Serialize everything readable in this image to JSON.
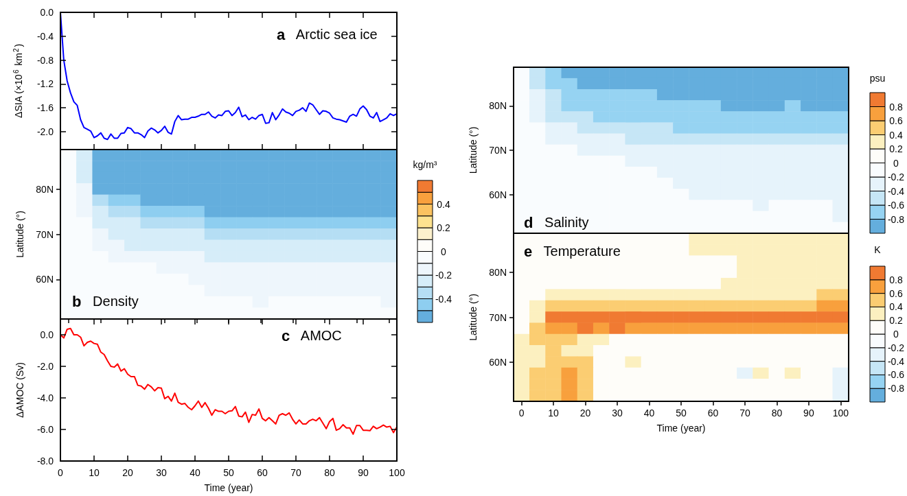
{
  "chart_data": [
    {
      "type": "line",
      "title": "Arctic sea ice",
      "annotations": [
        "a"
      ],
      "ylabel": "ΔSIA (×10$^{6}$ km$^{2}$)",
      "marker": "none",
      "tick_labels": "y",
      "x": [
        0,
        1,
        2,
        3,
        4,
        5,
        6,
        7,
        8,
        9,
        10,
        11,
        12,
        13,
        14,
        15,
        16,
        17,
        18,
        19,
        20,
        21,
        22,
        23,
        24,
        25,
        26,
        27,
        28,
        29,
        30,
        31,
        32,
        33,
        34,
        35,
        36,
        37,
        38,
        39,
        40,
        41,
        42,
        43,
        44,
        45,
        46,
        47,
        48,
        49,
        50,
        51,
        52,
        53,
        54,
        55,
        56,
        57,
        58,
        59,
        60,
        61,
        62,
        63,
        64,
        65,
        66,
        67,
        68,
        69,
        70,
        71,
        72,
        73,
        74,
        75,
        76,
        77,
        78,
        79,
        80,
        81,
        82,
        83,
        84,
        85,
        86,
        87,
        88,
        89,
        90,
        91,
        92,
        93,
        94,
        95,
        96,
        97,
        98,
        99,
        100
      ],
      "xlim": [
        0,
        100
      ],
      "xticks": [
        0,
        10,
        20,
        30,
        40,
        50,
        60,
        70,
        80,
        90,
        100
      ],
      "ylim": [
        -2.3,
        0
      ],
      "yticks": [
        {
          "value": 0,
          "label": "0.0"
        },
        -0.4,
        -0.8,
        -1.2,
        -1.6,
        {
          "value": -2,
          "label": "-2.0"
        }
      ],
      "series": [
        {
          "color": "#0000ff",
          "values": [
            0,
            -0.8,
            -1.15,
            -1.35,
            -1.5,
            -1.56,
            -1.8,
            -1.93,
            -1.96,
            -1.99,
            -2.1,
            -2.07,
            -2.02,
            -2.11,
            -2.13,
            -2.04,
            -2.11,
            -2.11,
            -2.03,
            -2.02,
            -1.93,
            -1.95,
            -2.02,
            -2.02,
            -2.05,
            -2.1,
            -1.99,
            -1.94,
            -1.97,
            -2.02,
            -1.98,
            -1.91,
            -2.01,
            -2.04,
            -1.83,
            -1.73,
            -1.8,
            -1.79,
            -1.79,
            -1.76,
            -1.76,
            -1.74,
            -1.71,
            -1.71,
            -1.67,
            -1.74,
            -1.77,
            -1.72,
            -1.73,
            -1.66,
            -1.65,
            -1.73,
            -1.68,
            -1.59,
            -1.75,
            -1.72,
            -1.8,
            -1.76,
            -1.79,
            -1.73,
            -1.71,
            -1.86,
            -1.85,
            -1.68,
            -1.8,
            -1.72,
            -1.62,
            -1.67,
            -1.69,
            -1.73,
            -1.66,
            -1.64,
            -1.6,
            -1.66,
            -1.52,
            -1.55,
            -1.63,
            -1.71,
            -1.65,
            -1.66,
            -1.69,
            -1.77,
            -1.79,
            -1.8,
            -1.82,
            -1.84,
            -1.74,
            -1.71,
            -1.74,
            -1.62,
            -1.57,
            -1.63,
            -1.74,
            -1.77,
            -1.68,
            -1.83,
            -1.8,
            -1.77,
            -1.7,
            -1.73,
            -1.7
          ]
        }
      ]
    },
    {
      "type": "heatmap",
      "title": "Density",
      "annotations": [
        "b"
      ],
      "ylabel": "Latitude (°)",
      "clabel": "kg/m³",
      "tick_labels": "y",
      "categories": [
        "0",
        null,
        "10",
        null,
        "20",
        null,
        "30",
        null,
        "40",
        null,
        "50",
        null,
        "60",
        null,
        "70",
        null,
        "80",
        null,
        "90",
        null,
        "100"
      ],
      "y_categories": [
        null,
        null,
        null,
        "80N",
        null,
        null,
        null,
        "70N",
        null,
        null,
        null,
        "60N",
        null,
        null,
        null
      ],
      "clim": [
        -0.6,
        0.6
      ],
      "cticks": [
        {
          "value": -0.6,
          "label": null
        },
        {
          "value": -0.5,
          "label": null
        },
        -0.4,
        {
          "value": -0.3,
          "label": null
        },
        -0.2,
        {
          "value": -0.1,
          "label": null
        },
        0,
        {
          "value": 0.1,
          "label": null
        },
        0.2,
        {
          "value": 0.3,
          "label": null
        },
        0.4,
        {
          "value": 0.5,
          "label": null
        },
        {
          "value": 0.6,
          "label": null
        }
      ],
      "cells": [
        [
          -0.05,
          -0.25,
          -0.55,
          -0.55,
          -0.55,
          -0.55,
          -0.55,
          -0.55,
          -0.55,
          -0.55,
          -0.55,
          -0.55,
          -0.55,
          -0.55,
          -0.55,
          -0.55,
          -0.55,
          -0.55,
          -0.55,
          -0.55,
          -0.55
        ],
        [
          -0.05,
          -0.25,
          -0.55,
          -0.55,
          -0.55,
          -0.55,
          -0.55,
          -0.55,
          -0.55,
          -0.55,
          -0.55,
          -0.55,
          -0.55,
          -0.55,
          -0.55,
          -0.55,
          -0.55,
          -0.55,
          -0.55,
          -0.55,
          -0.55
        ],
        [
          -0.05,
          -0.25,
          -0.55,
          -0.55,
          -0.55,
          -0.55,
          -0.55,
          -0.55,
          -0.55,
          -0.55,
          -0.55,
          -0.55,
          -0.55,
          -0.55,
          -0.55,
          -0.55,
          -0.55,
          -0.55,
          -0.55,
          -0.55,
          -0.55
        ],
        [
          -0.05,
          -0.15,
          -0.55,
          -0.55,
          -0.55,
          -0.55,
          -0.55,
          -0.55,
          -0.55,
          -0.55,
          -0.55,
          -0.55,
          -0.55,
          -0.55,
          -0.55,
          -0.55,
          -0.55,
          -0.55,
          -0.55,
          -0.55,
          -0.55
        ],
        [
          -0.05,
          -0.15,
          -0.35,
          -0.45,
          -0.45,
          -0.55,
          -0.55,
          -0.55,
          -0.55,
          -0.55,
          -0.55,
          -0.55,
          -0.55,
          -0.55,
          -0.55,
          -0.55,
          -0.55,
          -0.55,
          -0.55,
          -0.55,
          -0.55
        ],
        [
          -0.05,
          -0.15,
          -0.25,
          -0.35,
          -0.35,
          -0.45,
          -0.45,
          -0.45,
          -0.45,
          -0.55,
          -0.55,
          -0.55,
          -0.55,
          -0.55,
          -0.55,
          -0.55,
          -0.55,
          -0.55,
          -0.55,
          -0.55,
          -0.55
        ],
        [
          -0.05,
          -0.05,
          -0.25,
          -0.25,
          -0.25,
          -0.35,
          -0.35,
          -0.35,
          -0.35,
          -0.45,
          -0.45,
          -0.45,
          -0.45,
          -0.45,
          -0.45,
          -0.45,
          -0.45,
          -0.45,
          -0.45,
          -0.45,
          -0.45
        ],
        [
          -0.05,
          -0.05,
          -0.15,
          -0.25,
          -0.25,
          -0.25,
          -0.25,
          -0.25,
          -0.25,
          -0.35,
          -0.35,
          -0.35,
          -0.35,
          -0.35,
          -0.35,
          -0.35,
          -0.35,
          -0.35,
          -0.35,
          -0.35,
          -0.35
        ],
        [
          -0.05,
          -0.05,
          -0.15,
          -0.15,
          -0.25,
          -0.25,
          -0.25,
          -0.25,
          -0.25,
          -0.25,
          -0.25,
          -0.25,
          -0.25,
          -0.25,
          -0.25,
          -0.25,
          -0.25,
          -0.25,
          -0.25,
          -0.25,
          -0.25
        ],
        [
          -0.05,
          -0.05,
          -0.05,
          -0.15,
          -0.15,
          -0.15,
          -0.15,
          -0.15,
          -0.15,
          -0.25,
          -0.25,
          -0.25,
          -0.25,
          -0.25,
          -0.25,
          -0.25,
          -0.25,
          -0.25,
          -0.25,
          -0.25,
          -0.25
        ],
        [
          -0.05,
          -0.05,
          -0.05,
          -0.05,
          -0.05,
          -0.05,
          -0.15,
          -0.15,
          -0.15,
          -0.15,
          -0.15,
          -0.15,
          -0.15,
          -0.15,
          -0.15,
          -0.15,
          -0.15,
          -0.15,
          -0.15,
          -0.15,
          -0.15
        ],
        [
          -0.05,
          -0.05,
          -0.05,
          -0.05,
          -0.05,
          -0.05,
          -0.05,
          -0.05,
          -0.15,
          -0.15,
          -0.15,
          -0.15,
          -0.15,
          -0.15,
          -0.15,
          -0.15,
          -0.15,
          -0.15,
          -0.15,
          -0.15,
          -0.15
        ],
        [
          -0.05,
          -0.05,
          -0.05,
          -0.05,
          -0.05,
          -0.05,
          -0.05,
          -0.05,
          -0.05,
          -0.15,
          -0.15,
          -0.15,
          -0.15,
          -0.15,
          -0.15,
          -0.15,
          -0.15,
          -0.15,
          -0.15,
          -0.15,
          -0.15
        ],
        [
          -0.05,
          -0.05,
          -0.05,
          -0.05,
          -0.05,
          -0.05,
          -0.05,
          -0.05,
          -0.05,
          -0.05,
          -0.05,
          -0.05,
          -0.15,
          -0.05,
          -0.05,
          -0.05,
          -0.05,
          -0.05,
          -0.05,
          -0.05,
          -0.15
        ],
        [
          -0.05,
          -0.05,
          -0.05,
          -0.05,
          -0.05,
          -0.05,
          -0.05,
          -0.05,
          -0.05,
          -0.05,
          -0.05,
          -0.05,
          -0.05,
          -0.05,
          -0.05,
          -0.05,
          -0.05,
          -0.05,
          -0.05,
          -0.05,
          -0.05
        ]
      ]
    },
    {
      "type": "line",
      "title": "AMOC",
      "annotations": [
        "c"
      ],
      "xlabel": "Time (year)",
      "ylabel": "ΔAMOC (Sv)",
      "marker": "none",
      "x": [
        0,
        1,
        2,
        3,
        4,
        5,
        6,
        7,
        8,
        9,
        10,
        11,
        12,
        13,
        14,
        15,
        16,
        17,
        18,
        19,
        20,
        21,
        22,
        23,
        24,
        25,
        26,
        27,
        28,
        29,
        30,
        31,
        32,
        33,
        34,
        35,
        36,
        37,
        38,
        39,
        40,
        41,
        42,
        43,
        44,
        45,
        46,
        47,
        48,
        49,
        50,
        51,
        52,
        53,
        54,
        55,
        56,
        57,
        58,
        59,
        60,
        61,
        62,
        63,
        64,
        65,
        66,
        67,
        68,
        69,
        70,
        71,
        72,
        73,
        74,
        75,
        76,
        77,
        78,
        79,
        80,
        81,
        82,
        83,
        84,
        85,
        86,
        87,
        88,
        89,
        90,
        91,
        92,
        93,
        94,
        95,
        96,
        97,
        98,
        99,
        100
      ],
      "xlim": [
        0,
        100
      ],
      "xticks": [
        0,
        10,
        20,
        30,
        40,
        50,
        60,
        70,
        80,
        90,
        100
      ],
      "ylim": [
        -8,
        1
      ],
      "yticks": [
        {
          "value": -8,
          "label": "-8.0"
        },
        {
          "value": -6,
          "label": "-6.0"
        },
        {
          "value": -4,
          "label": "-4.0"
        },
        {
          "value": -2,
          "label": "-2.0"
        },
        {
          "value": 0,
          "label": "0.0"
        }
      ],
      "series": [
        {
          "color": "#ff0000",
          "values": [
            0,
            -0.2,
            0.35,
            0.4,
            0,
            0,
            -0.15,
            -0.7,
            -0.48,
            -0.4,
            -0.55,
            -0.6,
            -1.1,
            -1.25,
            -1.65,
            -2,
            -2.05,
            -1.85,
            -2.3,
            -2.15,
            -2.5,
            -2.65,
            -2.65,
            -3.2,
            -3.25,
            -3.45,
            -3.15,
            -3.3,
            -3.55,
            -3.35,
            -3.38,
            -4.05,
            -3.9,
            -4.2,
            -3.7,
            -4.28,
            -4.4,
            -4.35,
            -4.6,
            -4.75,
            -4.5,
            -4.2,
            -4.6,
            -4.3,
            -4.65,
            -5.1,
            -4.75,
            -4.85,
            -4.85,
            -5,
            -4.85,
            -4.82,
            -4.55,
            -5.15,
            -5.2,
            -4.9,
            -5.55,
            -5.05,
            -5.1,
            -4.7,
            -5.3,
            -5.45,
            -5.25,
            -5.45,
            -5.65,
            -5.1,
            -5,
            -5.1,
            -4.95,
            -5.35,
            -5.65,
            -5.4,
            -5.65,
            -5.65,
            -5.45,
            -5.35,
            -5.45,
            -5.25,
            -5.6,
            -5.95,
            -5.5,
            -5.3,
            -6.05,
            -5.95,
            -5.7,
            -5.9,
            -5.9,
            -6.3,
            -5.75,
            -5.75,
            -6.05,
            -6.05,
            -6.08,
            -5.8,
            -5.95,
            -5.85,
            -5.72,
            -5.85,
            -5.8,
            -6.2,
            -5.85
          ]
        }
      ]
    },
    {
      "type": "heatmap",
      "title": "Salinity",
      "annotations": [
        "d"
      ],
      "ylabel": "Latitude (°)",
      "clabel": "psu",
      "tick_labels": "y",
      "categories": [
        "0",
        null,
        "10",
        null,
        "20",
        null,
        "30",
        null,
        "40",
        null,
        "50",
        null,
        "60",
        null,
        "70",
        null,
        "80",
        null,
        "90",
        null,
        "100"
      ],
      "y_categories": [
        null,
        null,
        null,
        "80N",
        null,
        null,
        null,
        "70N",
        null,
        null,
        null,
        "60N",
        null,
        null,
        null
      ],
      "clim": [
        -1,
        1
      ],
      "cticks": [
        {
          "value": -1,
          "label": null
        },
        -0.8,
        -0.6,
        -0.4,
        -0.2,
        0,
        0.2,
        0.4,
        0.6,
        0.8,
        {
          "value": 1,
          "label": null
        }
      ],
      "cells": [
        [
          -0.1,
          -0.5,
          -0.7,
          -0.9,
          -0.9,
          -0.9,
          -0.9,
          -0.9,
          -0.9,
          -0.9,
          -0.9,
          -0.9,
          -0.9,
          -0.9,
          -0.9,
          -0.9,
          -0.9,
          -0.9,
          -0.9,
          -0.9,
          -0.9
        ],
        [
          -0.1,
          -0.5,
          -0.7,
          -0.7,
          -0.9,
          -0.9,
          -0.9,
          -0.9,
          -0.9,
          -0.9,
          -0.9,
          -0.9,
          -0.9,
          -0.9,
          -0.9,
          -0.9,
          -0.9,
          -0.9,
          -0.9,
          -0.9,
          -0.9
        ],
        [
          -0.1,
          -0.3,
          -0.5,
          -0.7,
          -0.7,
          -0.7,
          -0.7,
          -0.7,
          -0.7,
          -0.9,
          -0.9,
          -0.9,
          -0.9,
          -0.9,
          -0.9,
          -0.9,
          -0.9,
          -0.9,
          -0.9,
          -0.9,
          -0.9
        ],
        [
          -0.1,
          -0.3,
          -0.5,
          -0.7,
          -0.7,
          -0.7,
          -0.7,
          -0.7,
          -0.7,
          -0.7,
          -0.7,
          -0.7,
          -0.7,
          -0.9,
          -0.9,
          -0.9,
          -0.9,
          -0.7,
          -0.9,
          -0.9,
          -0.9
        ],
        [
          -0.1,
          -0.3,
          -0.5,
          -0.5,
          -0.5,
          -0.7,
          -0.7,
          -0.7,
          -0.7,
          -0.7,
          -0.7,
          -0.7,
          -0.7,
          -0.7,
          -0.7,
          -0.7,
          -0.7,
          -0.7,
          -0.7,
          -0.7,
          -0.7
        ],
        [
          -0.1,
          -0.1,
          -0.3,
          -0.3,
          -0.5,
          -0.5,
          -0.5,
          -0.5,
          -0.5,
          -0.5,
          -0.7,
          -0.7,
          -0.7,
          -0.7,
          -0.7,
          -0.7,
          -0.7,
          -0.7,
          -0.7,
          -0.7,
          -0.7
        ],
        [
          -0.1,
          -0.1,
          -0.3,
          -0.3,
          -0.3,
          -0.3,
          -0.3,
          -0.5,
          -0.5,
          -0.5,
          -0.5,
          -0.5,
          -0.5,
          -0.5,
          -0.5,
          -0.5,
          -0.5,
          -0.5,
          -0.5,
          -0.5,
          -0.5
        ],
        [
          -0.1,
          -0.1,
          -0.1,
          -0.1,
          -0.3,
          -0.3,
          -0.3,
          -0.3,
          -0.3,
          -0.3,
          -0.3,
          -0.3,
          -0.3,
          -0.3,
          -0.3,
          -0.3,
          -0.3,
          -0.3,
          -0.3,
          -0.3,
          -0.3
        ],
        [
          -0.1,
          -0.1,
          -0.1,
          -0.1,
          -0.1,
          -0.1,
          -0.1,
          -0.3,
          -0.3,
          -0.3,
          -0.3,
          -0.3,
          -0.3,
          -0.3,
          -0.3,
          -0.3,
          -0.3,
          -0.3,
          -0.3,
          -0.3,
          -0.3
        ],
        [
          -0.1,
          -0.1,
          -0.1,
          -0.1,
          -0.1,
          -0.1,
          -0.1,
          -0.1,
          -0.1,
          -0.3,
          -0.3,
          -0.3,
          -0.3,
          -0.3,
          -0.3,
          -0.3,
          -0.3,
          -0.3,
          -0.3,
          -0.3,
          -0.3
        ],
        [
          -0.1,
          -0.1,
          -0.1,
          -0.1,
          -0.1,
          -0.1,
          -0.1,
          -0.1,
          -0.1,
          -0.1,
          -0.3,
          -0.3,
          -0.3,
          -0.3,
          -0.3,
          -0.3,
          -0.3,
          -0.3,
          -0.3,
          -0.3,
          -0.3
        ],
        [
          -0.1,
          -0.1,
          -0.1,
          -0.1,
          -0.1,
          -0.1,
          -0.1,
          -0.1,
          -0.1,
          -0.1,
          -0.1,
          -0.3,
          -0.3,
          -0.3,
          -0.3,
          -0.3,
          -0.3,
          -0.3,
          -0.3,
          -0.3,
          -0.3
        ],
        [
          -0.1,
          -0.1,
          -0.1,
          -0.1,
          -0.1,
          -0.1,
          -0.1,
          -0.1,
          -0.1,
          -0.1,
          -0.1,
          -0.1,
          -0.1,
          -0.1,
          -0.1,
          -0.3,
          -0.1,
          -0.1,
          -0.1,
          -0.1,
          -0.3
        ],
        [
          -0.1,
          -0.1,
          -0.1,
          -0.1,
          -0.1,
          -0.1,
          -0.1,
          -0.1,
          -0.1,
          -0.1,
          -0.1,
          -0.1,
          -0.1,
          -0.1,
          -0.1,
          -0.1,
          -0.1,
          -0.1,
          -0.1,
          -0.1,
          -0.3
        ],
        [
          -0.1,
          -0.1,
          -0.1,
          -0.1,
          -0.1,
          -0.1,
          -0.1,
          -0.1,
          -0.1,
          -0.1,
          -0.1,
          -0.1,
          -0.1,
          -0.1,
          -0.1,
          -0.1,
          -0.1,
          -0.1,
          -0.1,
          -0.1,
          -0.1
        ]
      ]
    },
    {
      "type": "heatmap",
      "title": "Temperature",
      "annotations": [
        "e"
      ],
      "xlabel": "Time (year)",
      "ylabel": "Latitude (°)",
      "clabel": "K",
      "categories": [
        "0",
        null,
        "10",
        null,
        "20",
        null,
        "30",
        null,
        "40",
        null,
        "50",
        null,
        "60",
        null,
        "70",
        null,
        "80",
        null,
        "90",
        null,
        "100"
      ],
      "y_categories": [
        null,
        null,
        null,
        "80N",
        null,
        null,
        null,
        "70N",
        null,
        null,
        null,
        "60N",
        null,
        null,
        null
      ],
      "clim": [
        -1,
        1
      ],
      "cticks": [
        {
          "value": -1,
          "label": null
        },
        -0.8,
        -0.6,
        -0.4,
        -0.2,
        0,
        0.2,
        0.4,
        0.6,
        0.8,
        {
          "value": 1,
          "label": null
        }
      ],
      "cells": [
        [
          0.1,
          0.1,
          0.1,
          0.1,
          0.1,
          0.1,
          0.1,
          0.1,
          0.1,
          0.1,
          0.1,
          0.3,
          0.3,
          0.3,
          0.3,
          0.3,
          0.3,
          0.3,
          0.3,
          0.3,
          0.3
        ],
        [
          0.1,
          0.1,
          0.1,
          0.1,
          0.1,
          0.1,
          0.1,
          0.1,
          0.1,
          0.1,
          0.1,
          0.3,
          0.3,
          0.3,
          0.3,
          0.3,
          0.3,
          0.3,
          0.3,
          0.3,
          0.3
        ],
        [
          0.1,
          0.1,
          0.1,
          0.1,
          0.1,
          0.1,
          0.1,
          0.1,
          0.1,
          0.1,
          0.1,
          0.1,
          0.1,
          0.1,
          0.3,
          0.3,
          0.3,
          0.3,
          0.3,
          0.3,
          0.3
        ],
        [
          0.1,
          0.1,
          0.1,
          0.1,
          0.1,
          0.1,
          0.1,
          0.1,
          0.1,
          0.1,
          0.1,
          0.1,
          0.1,
          0.1,
          0.3,
          0.3,
          0.3,
          0.3,
          0.3,
          0.3,
          0.3
        ],
        [
          0.1,
          0.1,
          0.1,
          0.1,
          0.1,
          0.1,
          0.1,
          0.1,
          0.1,
          0.1,
          0.1,
          0.1,
          0.1,
          0.3,
          0.3,
          0.3,
          0.3,
          0.3,
          0.3,
          0.3,
          0.3
        ],
        [
          0.1,
          0.1,
          0.3,
          0.3,
          0.3,
          0.3,
          0.3,
          0.3,
          0.3,
          0.3,
          0.3,
          0.3,
          0.3,
          0.3,
          0.3,
          0.3,
          0.3,
          0.3,
          0.3,
          0.5,
          0.5
        ],
        [
          0.1,
          0.3,
          0.5,
          0.5,
          0.5,
          0.5,
          0.5,
          0.5,
          0.5,
          0.5,
          0.5,
          0.5,
          0.5,
          0.5,
          0.5,
          0.5,
          0.5,
          0.5,
          0.5,
          0.7,
          0.7
        ],
        [
          0.1,
          0.3,
          0.9,
          0.9,
          0.9,
          0.9,
          0.9,
          0.9,
          0.9,
          0.9,
          0.9,
          0.9,
          0.9,
          0.9,
          0.9,
          0.9,
          0.9,
          0.9,
          0.9,
          0.9,
          0.9
        ],
        [
          0.1,
          0.5,
          0.7,
          0.7,
          0.9,
          0.7,
          0.9,
          0.7,
          0.7,
          0.7,
          0.7,
          0.7,
          0.7,
          0.7,
          0.7,
          0.7,
          0.7,
          0.7,
          0.7,
          0.7,
          0.7
        ],
        [
          0.3,
          0.5,
          0.5,
          0.5,
          0.3,
          0.3,
          0.1,
          0.1,
          0.1,
          0.1,
          0.1,
          0.1,
          0.1,
          0.1,
          0.1,
          0.1,
          0.1,
          0.1,
          0.1,
          0.1,
          0.1
        ],
        [
          0.3,
          0.3,
          0.5,
          0.3,
          0.3,
          0.1,
          0.1,
          0.1,
          0.1,
          0.1,
          0.1,
          0.1,
          0.1,
          0.1,
          0.1,
          0.1,
          0.1,
          0.1,
          0.1,
          0.1,
          0.1
        ],
        [
          0.3,
          0.3,
          0.5,
          0.5,
          0.5,
          0.1,
          0.1,
          0.3,
          0.1,
          0.1,
          0.1,
          0.1,
          0.1,
          0.1,
          0.1,
          0.1,
          0.1,
          0.1,
          0.1,
          0.1,
          0.1
        ],
        [
          0.3,
          0.5,
          0.5,
          0.7,
          0.5,
          0.1,
          0.1,
          0.1,
          0.1,
          0.1,
          0.1,
          0.1,
          0.1,
          0.1,
          -0.3,
          0.3,
          0.1,
          0.3,
          0.1,
          0.1,
          -0.3
        ],
        [
          0.3,
          0.5,
          0.5,
          0.7,
          0.5,
          0.1,
          0.1,
          0.1,
          0.1,
          0.1,
          0.1,
          0.1,
          0.1,
          0.1,
          0.1,
          0.1,
          0.1,
          0.1,
          0.1,
          0.1,
          -0.3
        ],
        [
          0.3,
          0.5,
          0.5,
          0.7,
          0.5,
          0.1,
          0.1,
          0.1,
          0.1,
          0.1,
          0.1,
          0.1,
          0.1,
          0.1,
          0.1,
          0.1,
          0.1,
          0.1,
          0.1,
          0.1,
          -0.3
        ]
      ]
    }
  ]
}
